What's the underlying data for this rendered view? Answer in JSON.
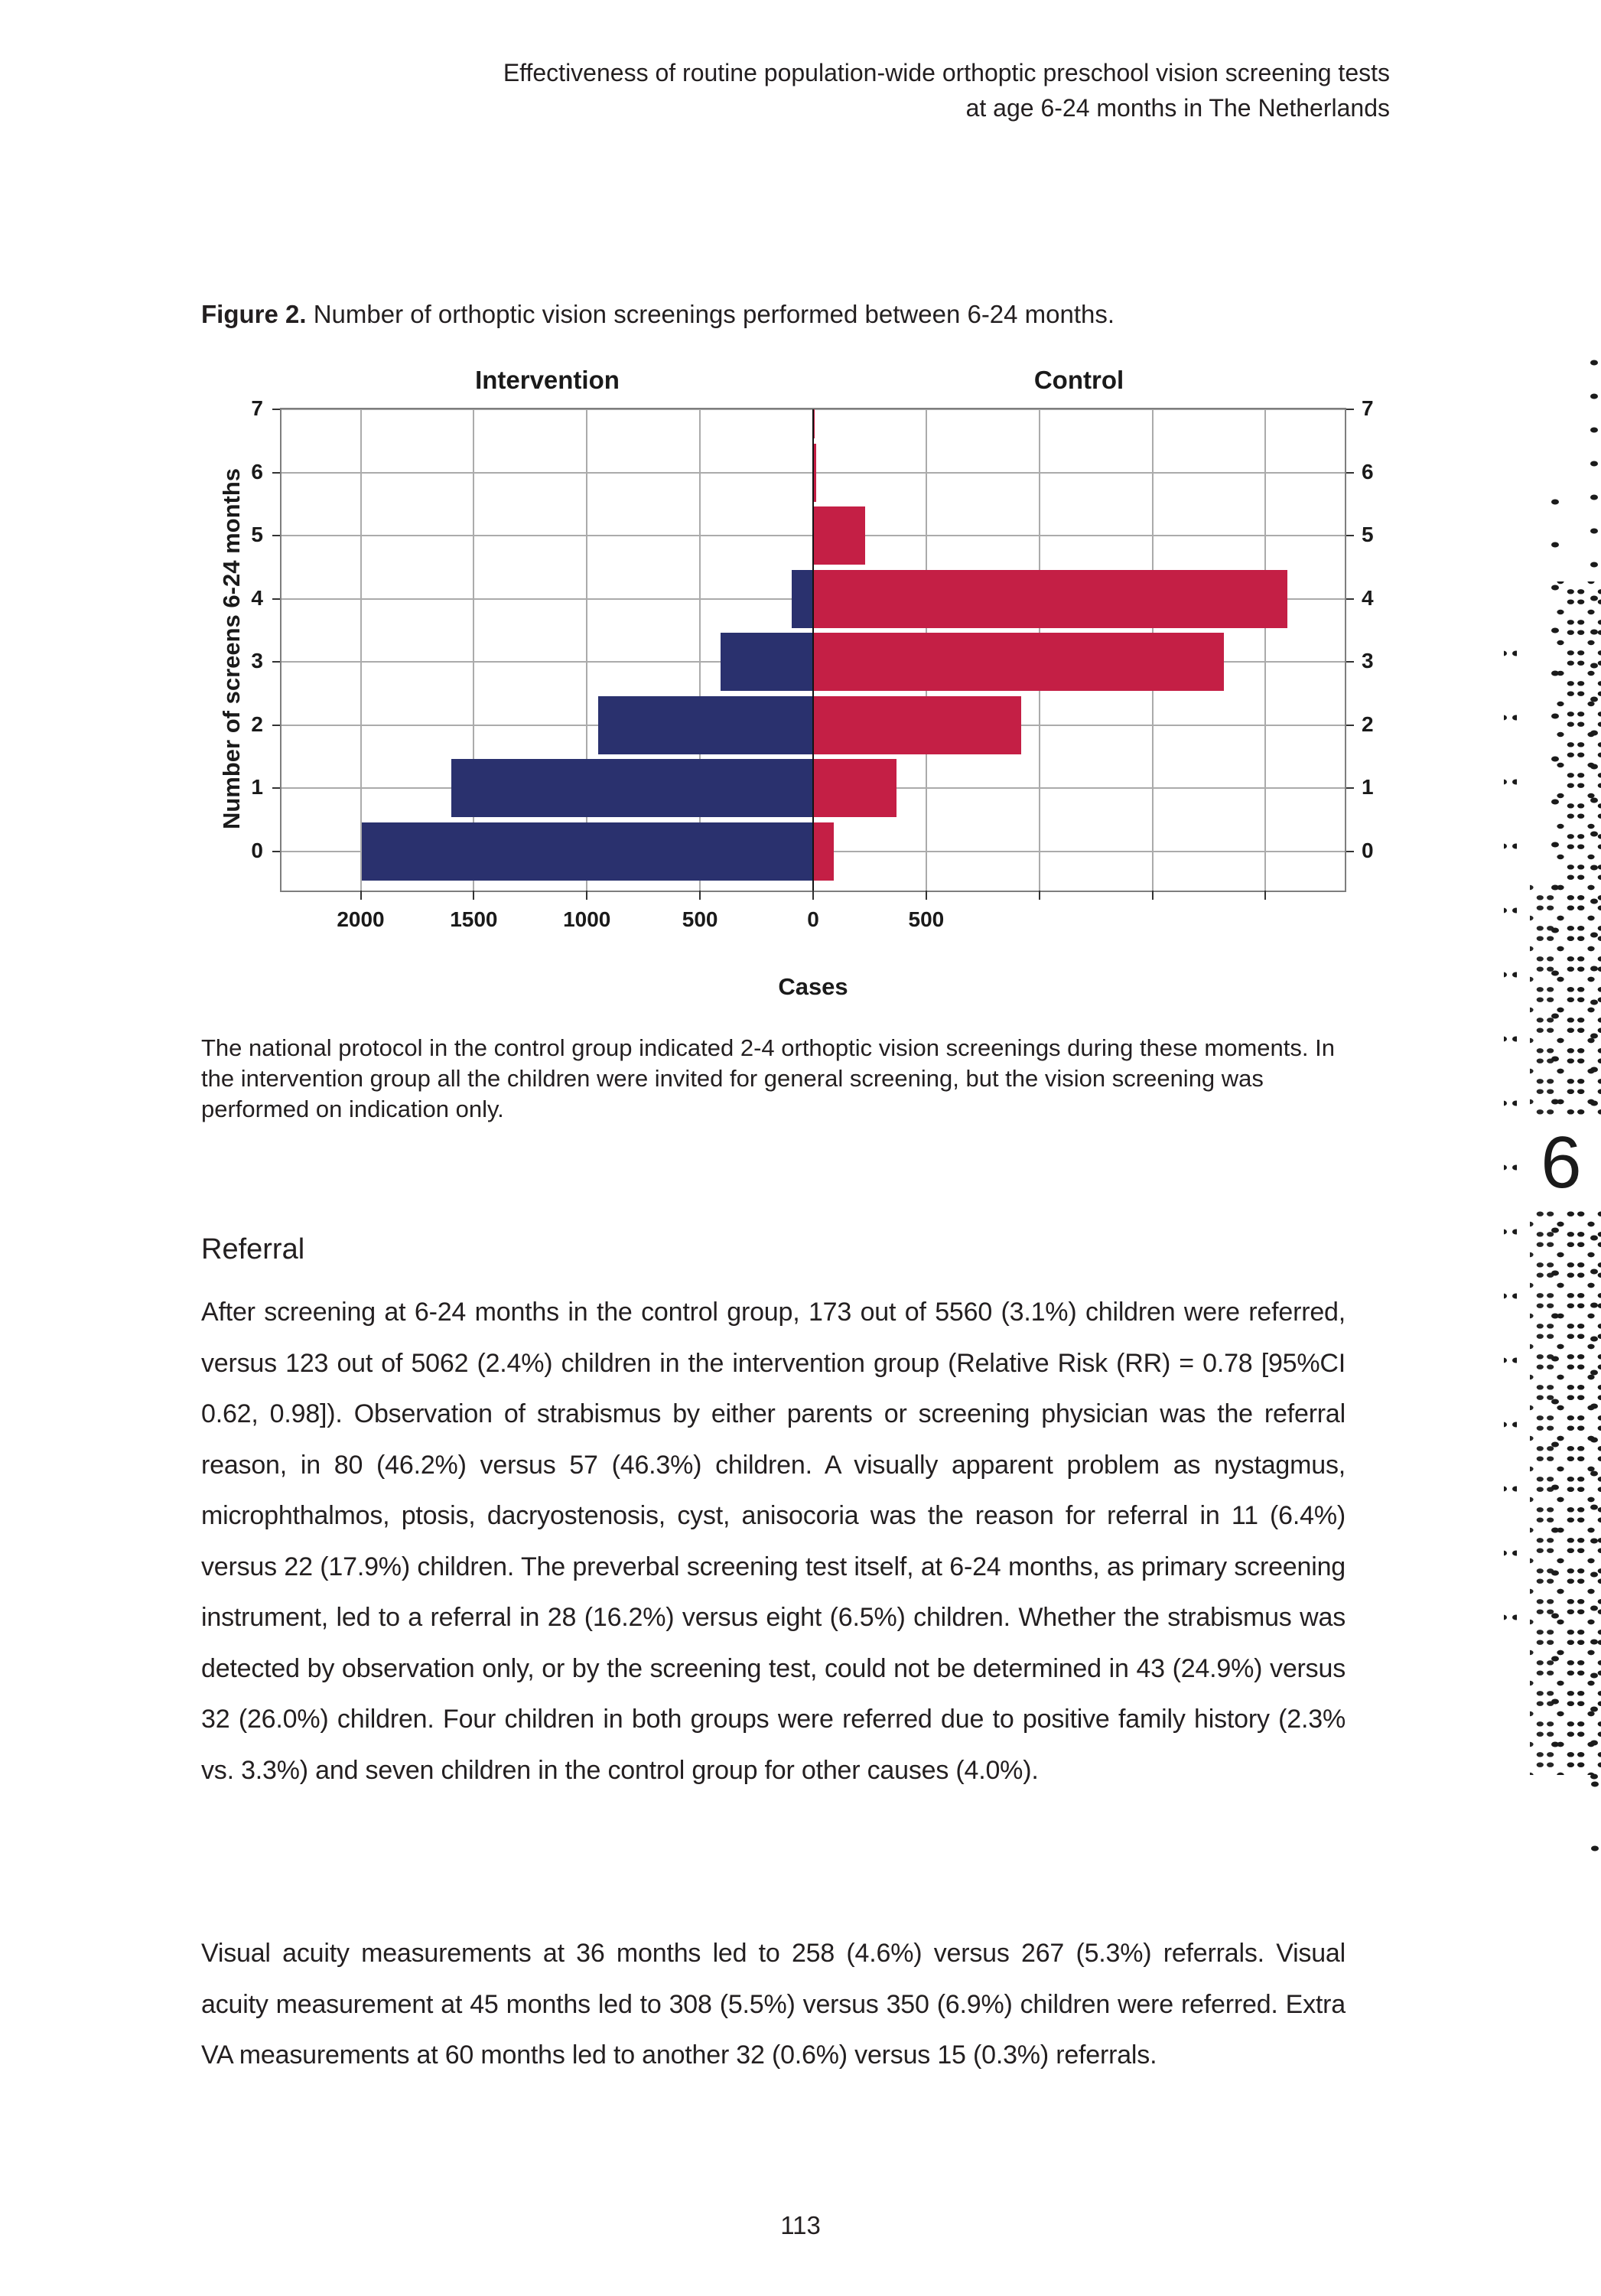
{
  "header": {
    "line1": "Effectiveness of routine population-wide orthoptic preschool vision screening tests",
    "line2": "at age 6-24 months in The Netherlands"
  },
  "figure": {
    "label": "Figure 2.",
    "title": "Number of orthoptic vision screenings performed between 6-24 months.",
    "caption": "The national protocol in the control group indicated 2-4 orthoptic vision screenings during these moments. In the intervention group all the children were invited for general screening, but the vision screening was performed on indication only."
  },
  "chart_data": {
    "type": "bar",
    "orientation": "horizontal-pyramid",
    "title": "",
    "categories": [
      "0",
      "1",
      "2",
      "3",
      "4",
      "5",
      "6",
      "7"
    ],
    "series": [
      {
        "name": "Intervention",
        "side": "left",
        "color": "#2a316e",
        "values": [
          1995,
          1600,
          950,
          410,
          95,
          0,
          0,
          0
        ]
      },
      {
        "name": "Control",
        "side": "right",
        "color": "#c41f45",
        "values": [
          90,
          370,
          920,
          1815,
          2095,
          230,
          15,
          5
        ]
      }
    ],
    "xlabel": "Cases",
    "ylabel": "Number of screens 6-24 months",
    "xlim": [
      -2350,
      2350
    ],
    "grid_step": 500,
    "grid": true,
    "x_ticks": [
      {
        "value": -2000,
        "label": "2000"
      },
      {
        "value": -1500,
        "label": "1500"
      },
      {
        "value": -1000,
        "label": "1000"
      },
      {
        "value": -500,
        "label": "500"
      },
      {
        "value": 0,
        "label": "0"
      },
      {
        "value": 500,
        "label": "500"
      }
    ],
    "y_ticks": [
      "0",
      "1",
      "2",
      "3",
      "4",
      "5",
      "6",
      "7"
    ],
    "gridline_color": "#ababab",
    "frame_color": "#7e7e7e",
    "axis_line_color": "#141414"
  },
  "sections": {
    "referral": {
      "heading": "Referral",
      "paragraphs": [
        "After screening at 6-24 months in the control group, 173 out of 5560 (3.1%) children were referred, versus 123 out of 5062 (2.4%) children in the intervention group (Relative Risk (RR) = 0.78 [95%CI 0.62, 0.98]). Observation of strabismus by either parents or screening physician was the referral reason, in 80 (46.2%) versus 57 (46.3%) children. A visually apparent problem as nystagmus, microphthalmos, ptosis, dacryostenosis, cyst, anisocoria was the reason for referral in 11 (6.4%) versus 22 (17.9%) children. The preverbal screening test itself, at 6-24 months, as primary screening instrument, led to a referral in 28 (16.2%) versus eight (6.5%) children. Whether the strabismus was detected by observation only, or by the screening test, could not be determined in 43 (24.9%) versus 32 (26.0%) children. Four children in both groups were referred due to positive family history (2.3% vs. 3.3%) and seven children in the control group for other causes (4.0%).",
        "Visual acuity measurements at 36 months led to 258 (4.6%) versus 267 (5.3%) referrals. Visual acuity measurement at 45 months led to 308 (5.5%) versus 350 (6.9%) children were referred. Extra VA measurements at 60 months led to another 32 (0.6%) versus 15 (0.3%) referrals."
      ]
    }
  },
  "chapter_number": "6",
  "footer": {
    "page_number": "113"
  }
}
